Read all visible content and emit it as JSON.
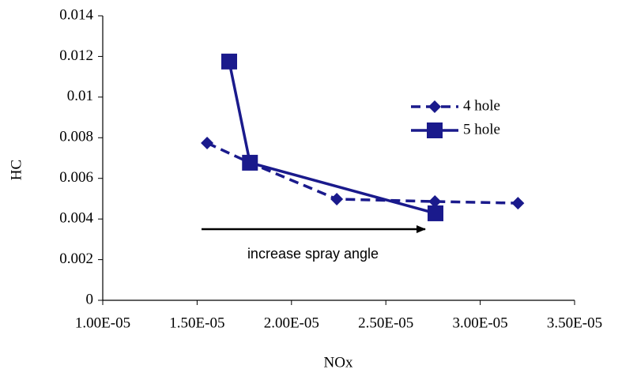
{
  "chart_data": {
    "type": "line",
    "x_label": "NOx",
    "y_label": "HC",
    "annotation": "increase spray angle",
    "xlim": [
      1e-05,
      3.5e-05
    ],
    "xticks": [
      {
        "value": 1e-05,
        "label": "1.00E-05"
      },
      {
        "value": 1.5e-05,
        "label": "1.50E-05"
      },
      {
        "value": 2e-05,
        "label": "2.00E-05"
      },
      {
        "value": 2.5e-05,
        "label": "2.50E-05"
      },
      {
        "value": 3e-05,
        "label": "3.00E-05"
      },
      {
        "value": 3.5e-05,
        "label": "3.50E-05"
      }
    ],
    "ylim": [
      0,
      0.014
    ],
    "yticks": [
      0,
      0.002,
      0.004,
      0.006,
      0.008,
      0.01,
      0.012,
      0.014
    ],
    "grid": false,
    "legend": "upper right",
    "series": [
      {
        "name": "4 hole",
        "color": "#1a1a8c",
        "marker": "diamond",
        "linestyle": "dashed",
        "x": [
          1.553e-05,
          1.779e-05,
          2.24e-05,
          2.76e-05,
          3.2e-05
        ],
        "values": [
          0.00774,
          0.00677,
          0.00498,
          0.00486,
          0.00478
        ]
      },
      {
        "name": "5 hole",
        "color": "#1a1a8c",
        "marker": "square",
        "linestyle": "solid",
        "x": [
          1.67e-05,
          1.78e-05,
          2.763e-05
        ],
        "values": [
          0.01175,
          0.00677,
          0.00428
        ]
      }
    ]
  }
}
